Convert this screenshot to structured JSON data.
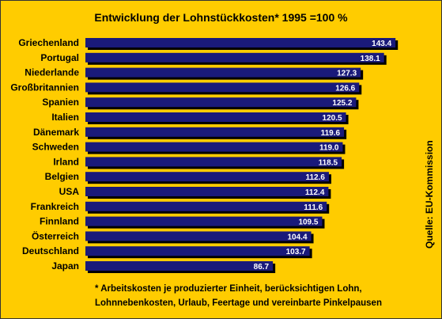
{
  "chart_data": {
    "type": "bar",
    "orientation": "horizontal",
    "title": "Entwicklung der Lohnstückkosten* 1995 =100 %",
    "categories": [
      "Griechenland",
      "Portugal",
      "Niederlande",
      "Großbritannien",
      "Spanien",
      "Italien",
      "Dänemark",
      "Schweden",
      "Irland",
      "Belgien",
      "USA",
      "Frankreich",
      "Finnland",
      "Österreich",
      "Deutschland",
      "Japan"
    ],
    "values": [
      143.4,
      138.1,
      127.3,
      126.6,
      125.2,
      120.5,
      119.6,
      119.0,
      118.5,
      112.6,
      112.4,
      111.6,
      109.5,
      104.4,
      103.7,
      86.7
    ],
    "value_labels": [
      "143.4",
      "138.1",
      "127.3",
      "126.6",
      "125.2",
      "120.5",
      "119.6",
      "119.0",
      "118.5",
      "112.6",
      "112.4",
      "111.6",
      "109.5",
      "104.4",
      "103.7",
      "86.7"
    ],
    "xlim": [
      0,
      150
    ],
    "grid": false,
    "colors": {
      "bar": "#1a1a7a",
      "shadow": "#000000",
      "background": "#ffcc00",
      "label": "#ffffff"
    }
  },
  "footnote": {
    "line1": "* Arbeitskosten je produzierter Einheit, berücksichtigen Lohn,",
    "line2": "Lohnnebenkosten, Urlaub, Feertage und vereinbarte Pinkelpausen"
  },
  "source": "Quelle: EU-Kommission"
}
